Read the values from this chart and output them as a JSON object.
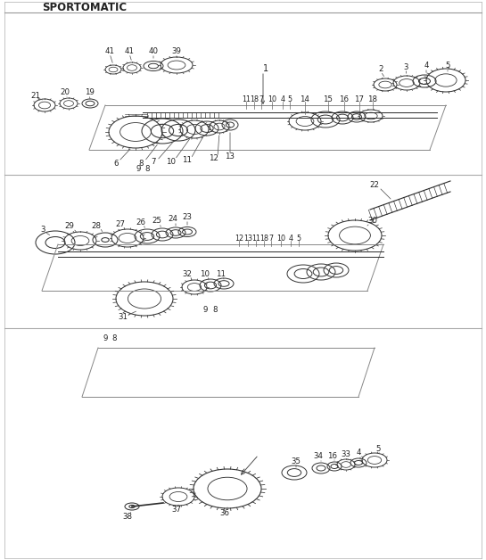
{
  "title": "SPORTOMATIC",
  "bg_color": "#ffffff",
  "line_color": "#2a2a2a",
  "text_color": "#222222",
  "fig_width": 5.45,
  "fig_height": 6.28,
  "dpi": 100
}
